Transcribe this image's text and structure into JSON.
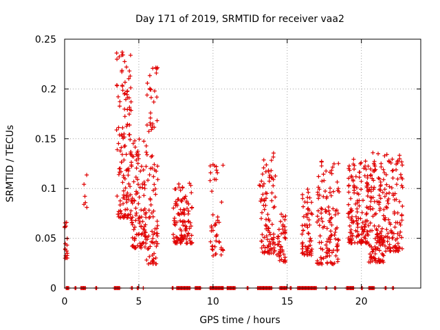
{
  "chart_data": {
    "type": "scatter",
    "title": "Day 171 of 2019, SRMTID for receiver vaa2",
    "xlabel": "GPS time / hours",
    "ylabel": "SRMTID / TECUs",
    "xlim": [
      0,
      24
    ],
    "ylim": [
      0,
      0.25
    ],
    "xticks": [
      0,
      5,
      10,
      15,
      20
    ],
    "xtick_labels": [
      "0",
      "5",
      "10",
      "15",
      "20"
    ],
    "yticks": [
      0,
      0.05,
      0.1,
      0.15,
      0.2,
      0.25
    ],
    "ytick_labels": [
      "0",
      "0.05",
      "0.1",
      "0.15",
      "0.2",
      "0.25"
    ],
    "grid": true,
    "marker": "+",
    "color": "#e00000",
    "clusters": [
      {
        "x_min": 0.0,
        "x_max": 0.2,
        "y_min": 0.03,
        "y_max": 0.067,
        "count": 18
      },
      {
        "x_min": 1.3,
        "x_max": 1.5,
        "y_min": 0.079,
        "y_max": 0.12,
        "count": 6
      },
      {
        "x_min": 3.5,
        "x_max": 4.5,
        "y_min": 0.07,
        "y_max": 0.24,
        "count": 130
      },
      {
        "x_min": 4.5,
        "x_max": 5.5,
        "y_min": 0.04,
        "y_max": 0.15,
        "count": 110
      },
      {
        "x_min": 5.5,
        "x_max": 6.3,
        "y_min": 0.024,
        "y_max": 0.223,
        "count": 90
      },
      {
        "x_min": 7.3,
        "x_max": 8.6,
        "y_min": 0.045,
        "y_max": 0.106,
        "count": 110
      },
      {
        "x_min": 9.8,
        "x_max": 10.7,
        "y_min": 0.03,
        "y_max": 0.133,
        "count": 45
      },
      {
        "x_min": 13.1,
        "x_max": 14.2,
        "y_min": 0.035,
        "y_max": 0.136,
        "count": 95
      },
      {
        "x_min": 14.3,
        "x_max": 14.9,
        "y_min": 0.026,
        "y_max": 0.075,
        "count": 45
      },
      {
        "x_min": 16.0,
        "x_max": 16.7,
        "y_min": 0.033,
        "y_max": 0.103,
        "count": 60
      },
      {
        "x_min": 17.0,
        "x_max": 18.5,
        "y_min": 0.024,
        "y_max": 0.132,
        "count": 120
      },
      {
        "x_min": 19.1,
        "x_max": 20.5,
        "y_min": 0.045,
        "y_max": 0.13,
        "count": 150
      },
      {
        "x_min": 20.5,
        "x_max": 21.5,
        "y_min": 0.026,
        "y_max": 0.142,
        "count": 130
      },
      {
        "x_min": 21.5,
        "x_max": 22.8,
        "y_min": 0.037,
        "y_max": 0.135,
        "count": 110
      }
    ],
    "zero_intervals": [
      [
        0.1,
        0.3
      ],
      [
        0.7,
        0.8
      ],
      [
        1.1,
        1.45
      ],
      [
        2.1,
        2.2
      ],
      [
        3.35,
        3.75
      ],
      [
        4.5,
        4.6
      ],
      [
        4.9,
        5.0
      ],
      [
        5.3,
        5.35
      ],
      [
        7.25,
        7.35
      ],
      [
        7.55,
        8.5
      ],
      [
        8.8,
        9.2
      ],
      [
        9.8,
        10.7
      ],
      [
        10.95,
        11.5
      ],
      [
        12.3,
        12.4
      ],
      [
        13.0,
        14.0
      ],
      [
        14.5,
        15.0
      ],
      [
        15.2,
        15.3
      ],
      [
        15.7,
        17.0
      ],
      [
        17.6,
        17.7
      ],
      [
        18.2,
        18.3
      ],
      [
        19.0,
        19.5
      ],
      [
        20.0,
        20.1
      ],
      [
        20.5,
        20.9
      ],
      [
        21.6,
        21.7
      ],
      [
        22.1,
        22.2
      ]
    ]
  }
}
